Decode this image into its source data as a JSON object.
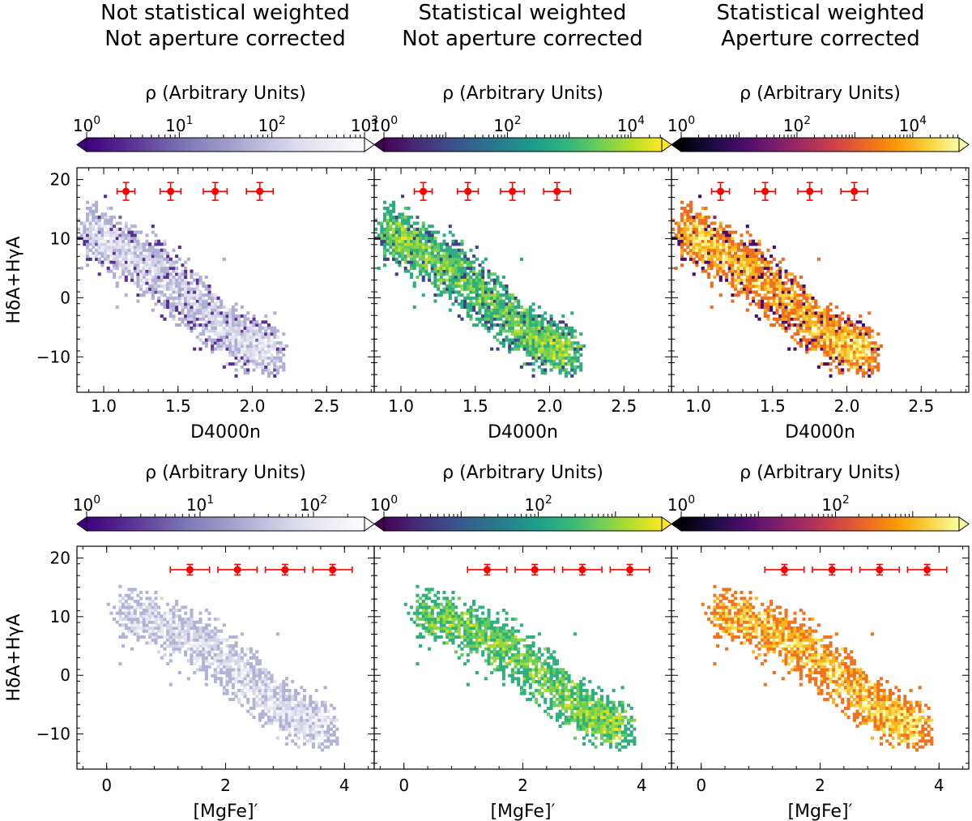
{
  "column_titles": [
    {
      "line1": "Not statistical weighted",
      "line2": "Not aperture corrected"
    },
    {
      "line1": "Statistical weighted",
      "line2": "Not aperture corrected"
    },
    {
      "line1": "Statistical weighted",
      "line2": "Aperture corrected"
    }
  ],
  "colorbar_label": "ρ (Arbitrary Units)",
  "colormaps": {
    "purples": [
      "#3f007d",
      "#54278f",
      "#6a51a3",
      "#807dba",
      "#9e9ac8",
      "#bcbddc",
      "#dadaeb",
      "#efedf5",
      "#fcfbfd"
    ],
    "viridis": [
      "#440154",
      "#482878",
      "#3e4989",
      "#31688e",
      "#26828e",
      "#1f9e89",
      "#35b779",
      "#6ece58",
      "#b5de2b",
      "#fde725"
    ],
    "inferno": [
      "#000004",
      "#1b0c41",
      "#4a0c6b",
      "#781c6d",
      "#a52c60",
      "#cf4446",
      "#ed6925",
      "#fb9b06",
      "#f7d13d",
      "#fcffa4"
    ]
  },
  "errorbar_color": "#ff0000",
  "chart_data": [
    {
      "type": "heatmap",
      "row": 1,
      "panels": [
        "Not statistical weighted / Not aperture corrected",
        "Statistical weighted / Not aperture corrected",
        "Statistical weighted / Aperture corrected"
      ],
      "xlabel": "D4000n",
      "ylabel": "HδA+HγA",
      "xlim": [
        0.82,
        2.82
      ],
      "ylim": [
        -16,
        22
      ],
      "xticks": [
        1.0,
        1.5,
        2.0,
        2.5
      ],
      "xtick_labels": [
        "1.0",
        "1.5",
        "2.0",
        "2.5"
      ],
      "yticks": [
        -10,
        0,
        10,
        20
      ],
      "ytick_labels": [
        "−10",
        "0",
        "10",
        "20"
      ],
      "error_bars": {
        "x": [
          1.15,
          1.45,
          1.75,
          2.05
        ],
        "y": [
          18,
          18,
          18,
          18
        ],
        "xerr": [
          0.06,
          0.07,
          0.08,
          0.09
        ],
        "yerr": [
          1.5,
          1.5,
          1.5,
          1.5
        ]
      },
      "colorbars": [
        {
          "cmap": "purples",
          "ticks": [
            "10",
            "10",
            "10",
            "10"
          ],
          "tick_exponents": [
            "0",
            "1",
            "2",
            "3"
          ],
          "log_max": 3.0,
          "extend": "both"
        },
        {
          "cmap": "viridis",
          "ticks": [
            "10",
            "10",
            "10"
          ],
          "tick_exponents": [
            "0",
            "2",
            "4"
          ],
          "log_max": 4.5,
          "extend": "both"
        },
        {
          "cmap": "inferno",
          "ticks": [
            "10",
            "10",
            "10"
          ],
          "tick_exponents": [
            "0",
            "2",
            "4"
          ],
          "log_max": 4.8,
          "extend": "both"
        }
      ],
      "distribution": {
        "spine": [
          [
            0.93,
            11.5
          ],
          [
            1.05,
            9.5
          ],
          [
            1.3,
            5.5
          ],
          [
            1.55,
            0.5
          ],
          [
            1.8,
            -5.0
          ],
          [
            2.0,
            -8.0
          ],
          [
            2.15,
            -9.0
          ]
        ],
        "width": [
          3.2,
          3.5,
          3.7,
          3.6,
          3.3,
          2.8
        ]
      }
    },
    {
      "type": "heatmap",
      "row": 2,
      "panels": [
        "Not statistical weighted / Not aperture corrected",
        "Statistical weighted / Not aperture corrected",
        "Statistical weighted / Aperture corrected"
      ],
      "xlabel": "[MgFe]′",
      "ylabel": "HδA+HγA",
      "xlim": [
        -0.5,
        4.5
      ],
      "ylim": [
        -16,
        22
      ],
      "xticks": [
        0,
        2,
        4
      ],
      "xtick_labels": [
        "0",
        "2",
        "4"
      ],
      "yticks": [
        -10,
        0,
        10,
        20
      ],
      "ytick_labels": [
        "−10",
        "0",
        "10",
        "20"
      ],
      "error_bars": {
        "x": [
          1.4,
          2.2,
          3.0,
          3.8
        ],
        "y": [
          18,
          18,
          18,
          18
        ],
        "xerr": [
          0.33,
          0.33,
          0.33,
          0.33
        ],
        "yerr": [
          0.9,
          0.9,
          0.9,
          0.9
        ]
      },
      "colorbars": [
        {
          "cmap": "purples",
          "ticks": [
            "10",
            "10",
            "10"
          ],
          "tick_exponents": [
            "0",
            "1",
            "2"
          ],
          "log_max": 2.45,
          "extend": "both"
        },
        {
          "cmap": "viridis",
          "ticks": [
            "10",
            "10"
          ],
          "tick_exponents": [
            "0",
            "2"
          ],
          "log_max": 3.6,
          "extend": "both"
        },
        {
          "cmap": "inferno",
          "ticks": [
            "10",
            "10"
          ],
          "tick_exponents": [
            "0",
            "2"
          ],
          "log_max": 3.6,
          "extend": "both"
        }
      ],
      "distribution": {
        "spine": [
          [
            0.3,
            10.5
          ],
          [
            0.9,
            9.0
          ],
          [
            1.6,
            5.5
          ],
          [
            2.2,
            1.0
          ],
          [
            2.8,
            -4.5
          ],
          [
            3.3,
            -7.5
          ],
          [
            3.7,
            -8.5
          ]
        ],
        "width": [
          3.0,
          3.4,
          3.7,
          3.6,
          3.3,
          2.8
        ]
      }
    }
  ]
}
